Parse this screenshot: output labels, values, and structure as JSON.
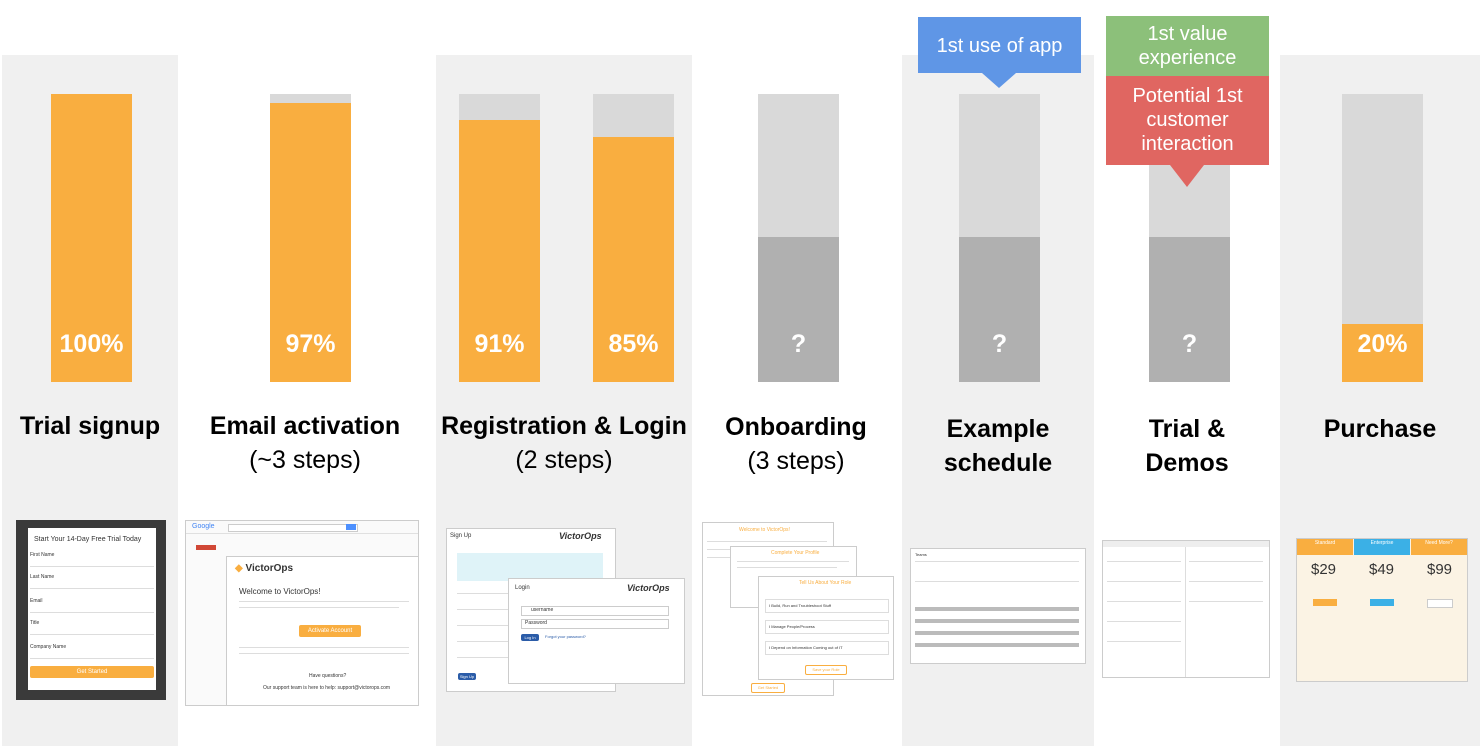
{
  "chart_data": {
    "type": "bar",
    "title": "",
    "xlabel": "",
    "ylabel": "",
    "ylim": [
      0,
      100
    ],
    "categories": [
      "Trial signup",
      "Email activation",
      "Registration",
      "Login",
      "Onboarding",
      "Example schedule",
      "Trial & Demos",
      "Purchase"
    ],
    "values": [
      100,
      97,
      91,
      85,
      null,
      null,
      null,
      20
    ],
    "value_labels": [
      "100%",
      "97%",
      "91%",
      "85%",
      "?",
      "?",
      "?",
      "20%"
    ],
    "unknown_marker": "?",
    "colors": {
      "fill": "#f9ae40",
      "track": "#d9d9d9",
      "unknown": "#b0b0b0"
    }
  },
  "stages": [
    {
      "title": "Trial signup",
      "sub": ""
    },
    {
      "title": "Email activation",
      "sub": "(~3 steps)"
    },
    {
      "title": "Registration & Login",
      "sub": "(2 steps)"
    },
    {
      "title": "Onboarding",
      "sub": "(3 steps)"
    },
    {
      "title": "Example schedule",
      "sub": ""
    },
    {
      "title": "Trial &",
      "sub": "Demos"
    },
    {
      "title": "Purchase",
      "sub": ""
    }
  ],
  "callouts": {
    "first_use": {
      "text": "1st use of app",
      "color": "#5f96e6"
    },
    "first_value": {
      "text": "1st value experience",
      "color": "#8cc07a"
    },
    "customer": {
      "text": "Potential 1st customer interaction",
      "color": "#e06661"
    }
  },
  "thumbs": {
    "signup": {
      "title": "Start Your 14-Day Free Trial Today",
      "fields": [
        "First Name",
        "Last Name",
        "Email",
        "Title",
        "Company Name"
      ],
      "button": "Get Started"
    },
    "email": {
      "brand": "VictorOps",
      "welcome": "Welcome to VictorOps!",
      "button": "Activate Account",
      "questions": "Have questions?",
      "support": "Our support team is here to help: support@victorops.com",
      "google": "Google"
    },
    "login": {
      "signup": "Sign Up",
      "brand": "VictorOps",
      "login": "Login",
      "username": "username",
      "password": "Password",
      "button": "Log In",
      "forgot": "Forgot your password?",
      "signup_btn": "Sign Up"
    },
    "onboard": {
      "welcome": "Welcome to VictorOps!",
      "profile": "Complete Your Profile",
      "role": "Tell Us About Your Role",
      "opt1": "I Build, Run and Troubleshoot Stuff",
      "opt2": "I Manage People/Process",
      "opt3": "I Depend on Information Coming out of IT",
      "start": "Get Started",
      "save": "Save your Role"
    },
    "schedule": {
      "teams": "Teams"
    },
    "pricing": {
      "plans": [
        "Standard",
        "Enterprise",
        "Need More?"
      ],
      "prices": [
        "$29",
        "$49",
        "$99"
      ]
    }
  }
}
